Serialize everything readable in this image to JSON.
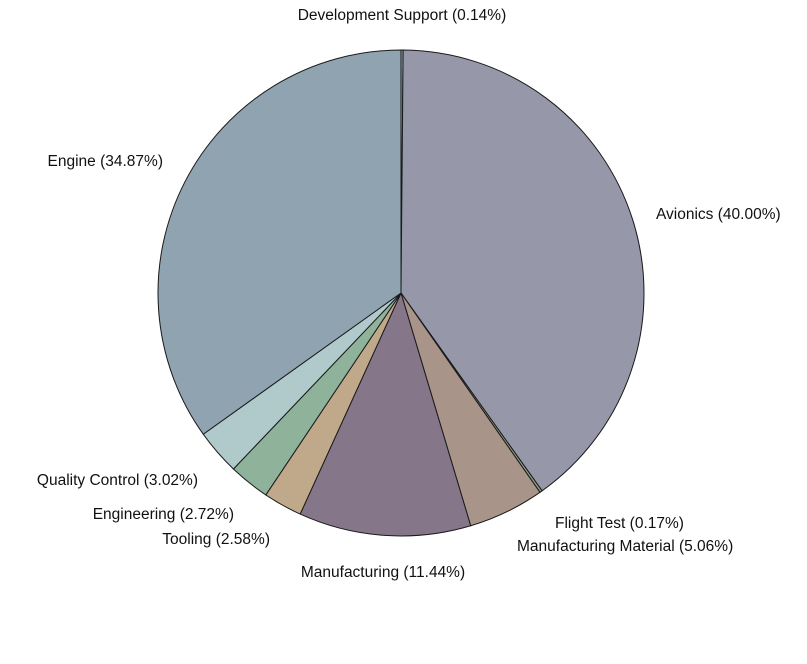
{
  "chart_data": {
    "type": "pie",
    "title": "",
    "slices": [
      {
        "label": "Development Support (0.14%)",
        "name": "Development Support",
        "value": 0.14,
        "color": "#9aa4b2"
      },
      {
        "label": "Avionics (40.00%)",
        "name": "Avionics",
        "value": 40.0,
        "color": "#9697a9"
      },
      {
        "label": "Flight Test (0.17%)",
        "name": "Flight Test",
        "value": 0.17,
        "color": "#8e9a84"
      },
      {
        "label": "Manufacturing Material (5.06%)",
        "name": "Manufacturing Material",
        "value": 5.06,
        "color": "#a89488"
      },
      {
        "label": "Manufacturing (11.44%)",
        "name": "Manufacturing",
        "value": 11.44,
        "color": "#857689"
      },
      {
        "label": "Tooling (2.58%)",
        "name": "Tooling",
        "value": 2.58,
        "color": "#bfa98a"
      },
      {
        "label": "Engineering (2.72%)",
        "name": "Engineering",
        "value": 2.72,
        "color": "#8fb29b"
      },
      {
        "label": "Quality Control (3.02%)",
        "name": "Quality Control",
        "value": 3.02,
        "color": "#b0cacb"
      },
      {
        "label": "Engine (34.87%)",
        "name": "Engine",
        "value": 34.87,
        "color": "#8fa3b0"
      }
    ]
  }
}
